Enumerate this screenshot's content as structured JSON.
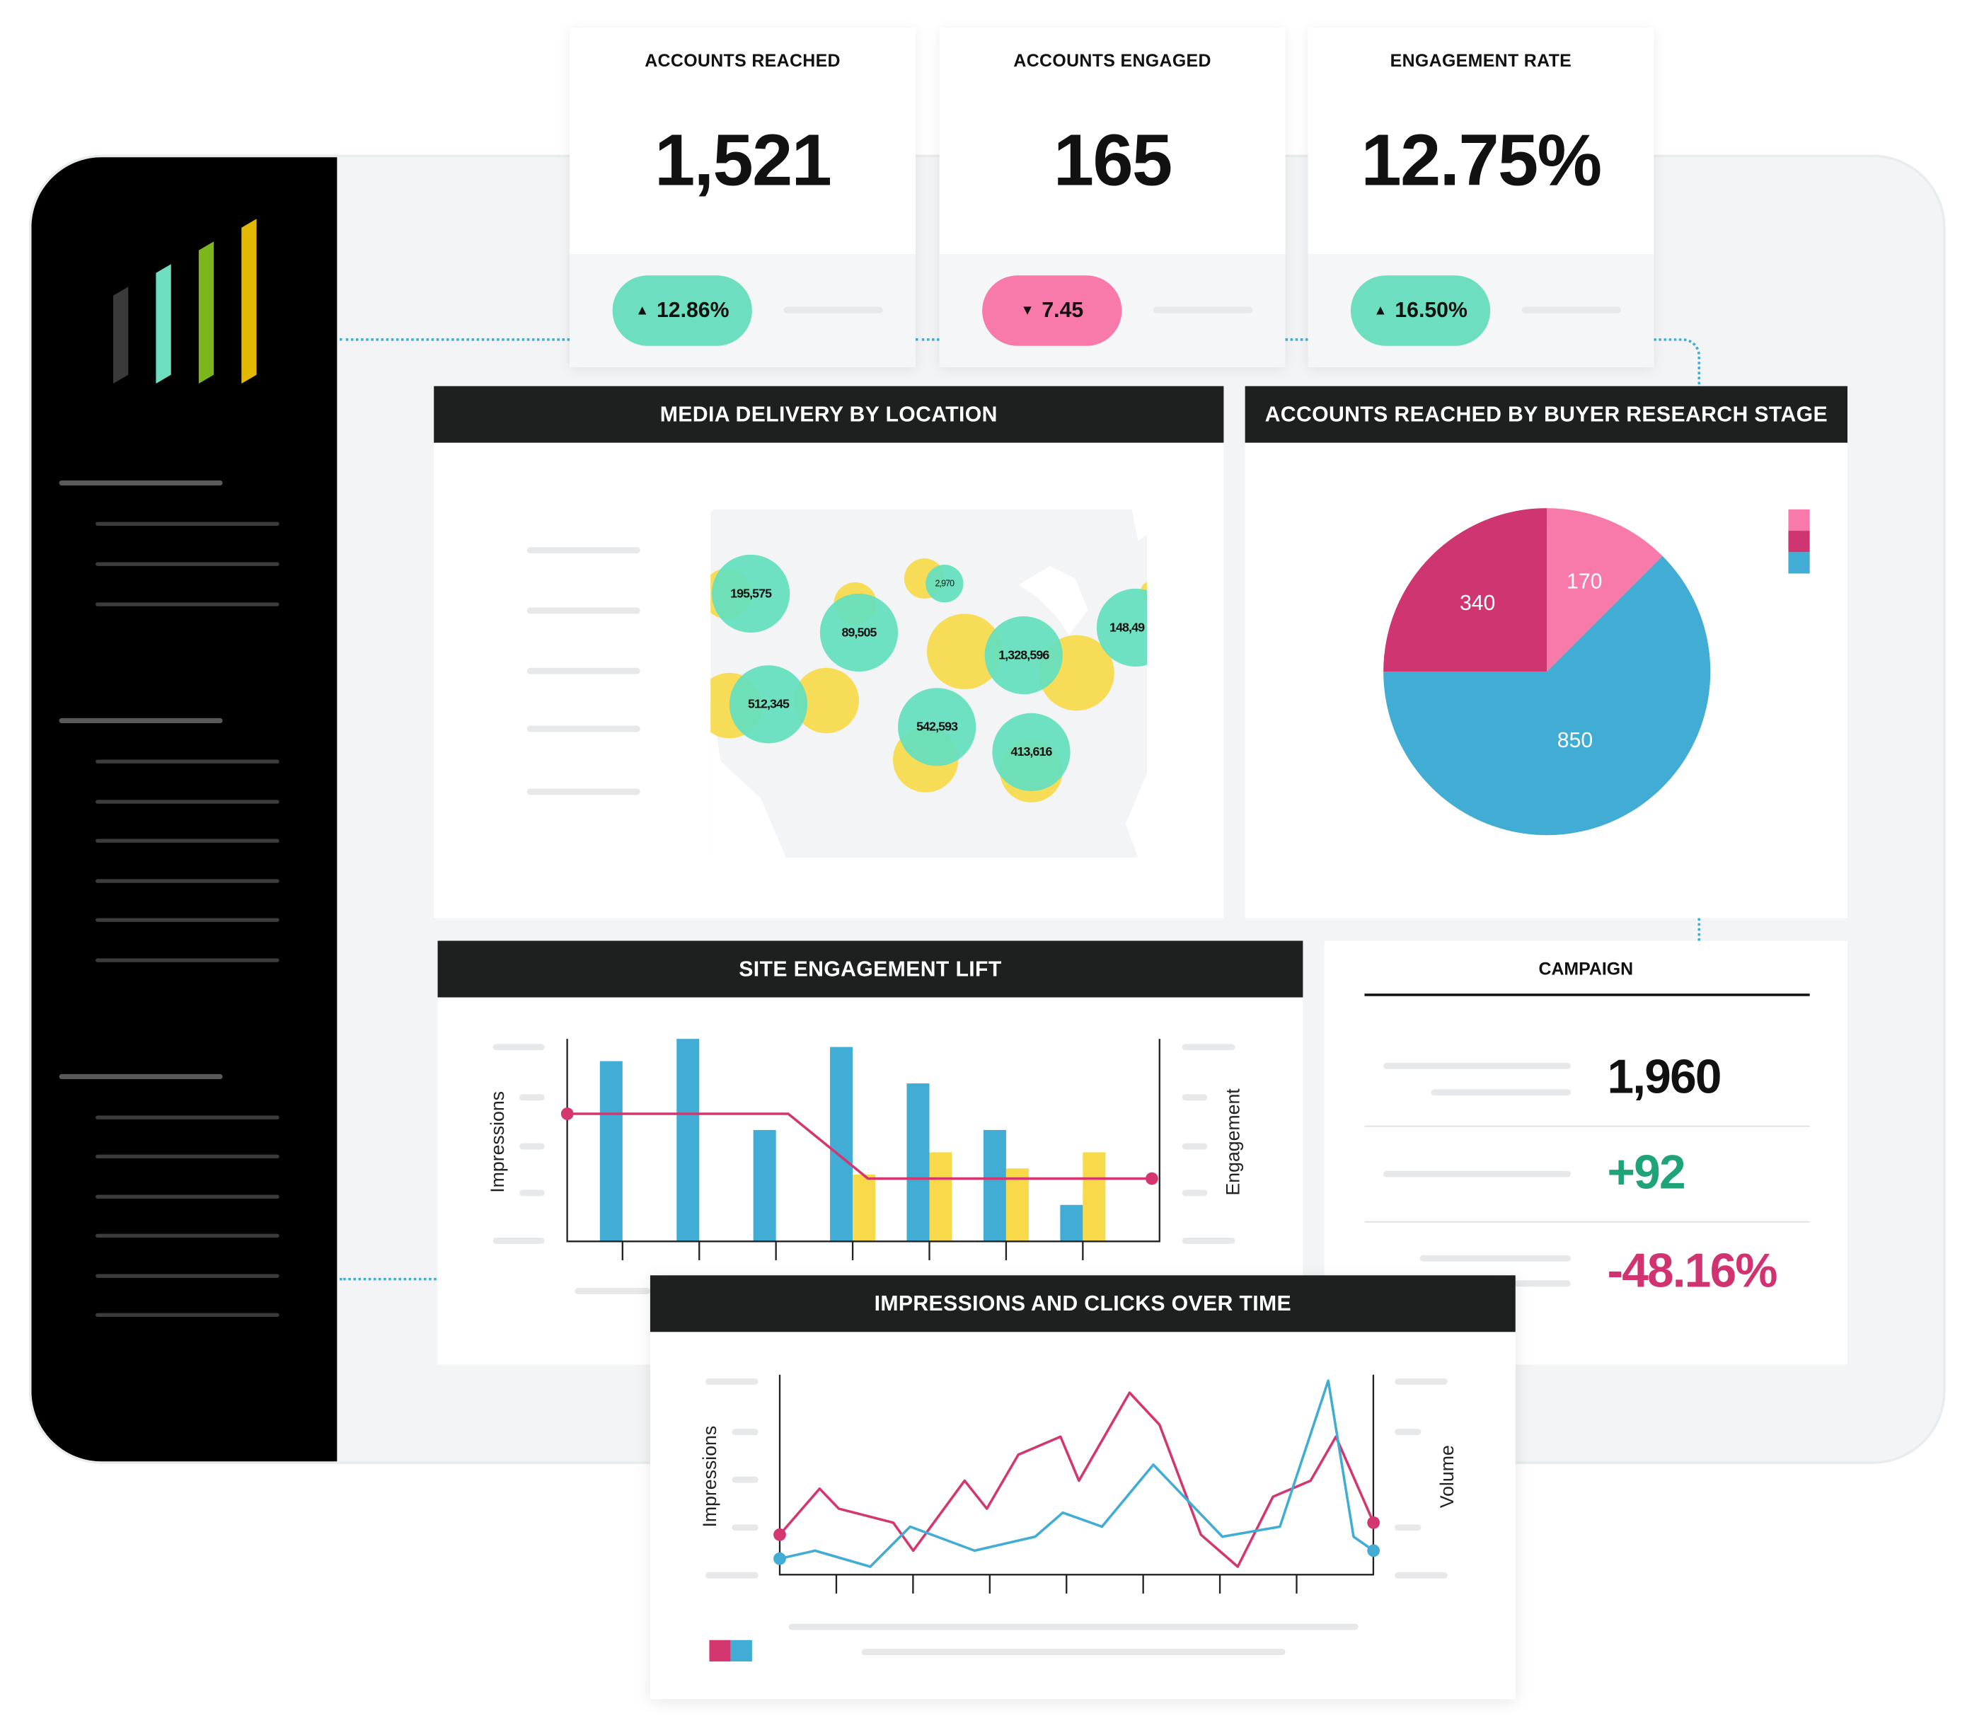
{
  "kpis": [
    {
      "title": "ACCOUNTS REACHED",
      "value": "1,521",
      "change": "12.86%",
      "direction": "up",
      "color": "#6ddfc0"
    },
    {
      "title": "ACCOUNTS ENGAGED",
      "value": "165",
      "change": "7.45",
      "direction": "down",
      "color": "#f77aab"
    },
    {
      "title": "ENGAGEMENT RATE",
      "value": "12.75%",
      "change": "16.50%",
      "direction": "up",
      "color": "#6ddfc0"
    }
  ],
  "icons": {
    "up": "▲",
    "down": "▼"
  },
  "map_panel": {
    "title": "MEDIA DELIVERY BY LOCATION",
    "bubbles": [
      "195,575",
      "89,505",
      "2,970",
      "1,328,596",
      "148,49",
      "512,345",
      "542,593",
      "413,616"
    ]
  },
  "pie_panel": {
    "title": "ACCOUNTS REACHED BY BUYER RESEARCH STAGE"
  },
  "site_panel": {
    "title": "SITE ENGAGEMENT LIFT",
    "ylabel_left": "Impressions",
    "ylabel_right": "Engagement"
  },
  "campaign": {
    "title": "CAMPAIGN",
    "rows": [
      {
        "value": "1,960",
        "color": "#111111"
      },
      {
        "value": "+92",
        "color": "#1fa37a"
      },
      {
        "value": "-48.16%",
        "color": "#d0336f"
      }
    ]
  },
  "time_panel": {
    "title": "IMPRESSIONS AND CLICKS OVER TIME",
    "ylabel_left": "Impressions",
    "ylabel_right": "Volume"
  },
  "chart_data": [
    {
      "type": "pie",
      "title": "ACCOUNTS REACHED BY BUYER RESEARCH STAGE",
      "values": [
        170,
        850,
        340
      ],
      "colors": [
        "#f77aab",
        "#41acd4",
        "#cf3571"
      ],
      "legend": "top-right"
    },
    {
      "type": "bar",
      "title": "SITE ENGAGEMENT LIFT",
      "ylim": [
        0,
        100
      ],
      "series": [
        {
          "name": "Impressions",
          "color": "#41acd4",
          "values": [
            89,
            100,
            55,
            96,
            78,
            55,
            18
          ]
        },
        {
          "name": "Engagement",
          "color": "#f7d94a",
          "values": [
            0,
            0,
            0,
            33,
            44,
            36,
            44
          ]
        }
      ],
      "line": {
        "name": "Engagement lift",
        "color": "#d43670",
        "x": [
          -0.72,
          2.16,
          3.2,
          6.9
        ],
        "y": [
          63,
          63,
          31,
          31
        ]
      }
    },
    {
      "type": "line",
      "title": "IMPRESSIONS AND CLICKS OVER TIME",
      "ylim": [
        0,
        100
      ],
      "legend": "bottom-left",
      "series": [
        {
          "name": "Impressions",
          "color": "#d43670",
          "x": [
            0,
            0.52,
            0.77,
            1.48,
            1.74,
            2.41,
            2.7,
            3.11,
            3.66,
            3.9,
            4.56,
            4.95,
            5.49,
            5.97,
            6.43,
            6.92,
            7.25,
            7.74
          ],
          "y": [
            20,
            43,
            33,
            26,
            12,
            47,
            33,
            60,
            69,
            47,
            91,
            75,
            20,
            4,
            39,
            47,
            69,
            26
          ]
        },
        {
          "name": "Clicks",
          "color": "#41acd4",
          "x": [
            0,
            0.46,
            1.18,
            1.7,
            2.54,
            3.33,
            3.69,
            4.2,
            4.87,
            5.77,
            6.52,
            7.15,
            7.48,
            7.74
          ],
          "y": [
            8,
            12,
            4,
            24,
            12,
            19,
            31,
            24,
            55,
            19,
            24,
            97,
            19,
            12
          ]
        }
      ]
    }
  ]
}
